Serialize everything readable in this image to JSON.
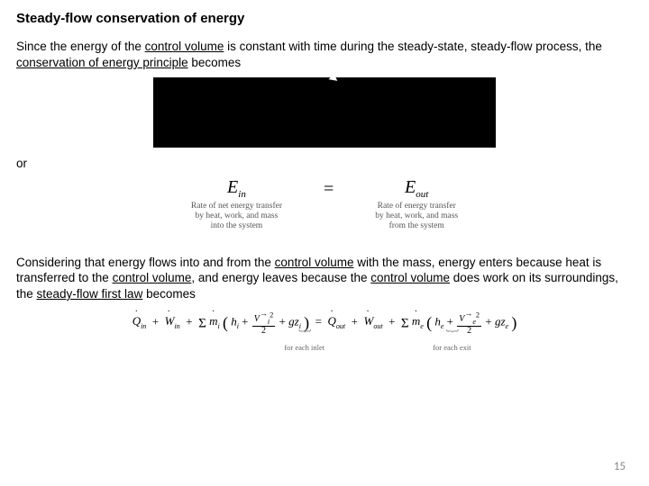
{
  "title": "Steady-flow conservation of energy",
  "para1_a": "Since the energy of the ",
  "para1_cv": "control volume",
  "para1_b": " is constant with time during the steady-state, steady-flow process, the ",
  "para1_cep": "conservation of energy principle",
  "para1_c": " becomes",
  "or": "or",
  "ein": "E",
  "ein_sub": "in",
  "eout": "E",
  "eout_sub": "out",
  "cap_in_l1": "Rate of net energy transfer",
  "cap_in_l2": "by heat, work, and mass",
  "cap_in_l3": "into the system",
  "cap_out_l1": "Rate of energy transfer",
  "cap_out_l2": "by heat, work, and mass",
  "cap_out_l3": "from the system",
  "para2_a": "Considering that energy flows into and from the ",
  "para2_cv1": "control volume",
  "para2_b": " with the mass, energy enters because heat is transferred to the ",
  "para2_cv2": "control volume",
  "para2_c": ", and energy leaves because the ",
  "para2_cv3": "control volume",
  "para2_d": " does work on its surroundings, the ",
  "para2_sfl": "steady-flow first law",
  "para2_e": " becomes",
  "eq": {
    "Qin": "Q",
    "Qin_sub": "in",
    "Win": "W",
    "Win_sub": "in",
    "mi": "m",
    "mi_sub": "i",
    "hi": "h",
    "hi_sub": "i",
    "Vi": "V",
    "Vi_sub": "i",
    "Vi_sup": "2",
    "two": "2",
    "g": "g",
    "zi": "z",
    "zi_sub": "i",
    "Qout": "Q",
    "Qout_sub": "out",
    "Wout": "W",
    "Wout_sub": "out",
    "me": "m",
    "me_sub": "e",
    "he": "h",
    "he_sub": "e",
    "Ve": "V",
    "Ve_sub": "e",
    "Ve_sup": "2",
    "ze": "z",
    "ze_sub": "e"
  },
  "brace_in": "for each inlet",
  "brace_out": "for each exit",
  "pagenum": "15"
}
